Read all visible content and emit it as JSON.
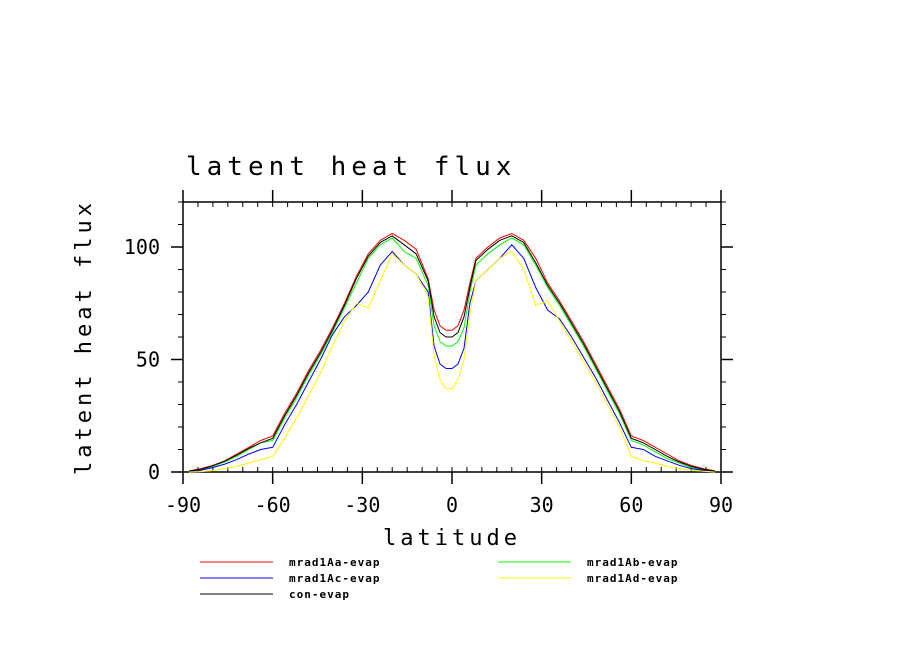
{
  "chart_data": {
    "type": "line",
    "title": "latent heat flux",
    "xlabel": "latitude",
    "ylabel": "latent heat flux",
    "xlim": [
      -90,
      90
    ],
    "ylim": [
      0,
      120
    ],
    "xticks": [
      -90,
      -60,
      -30,
      0,
      30,
      60,
      90
    ],
    "yticks": [
      0,
      50,
      100
    ],
    "grid": false,
    "legend_position": "bottom",
    "x": [
      -88,
      -84,
      -80,
      -76,
      -72,
      -68,
      -64,
      -60,
      -56,
      -52,
      -48,
      -44,
      -40,
      -36,
      -32,
      -28,
      -24,
      -20,
      -16,
      -12,
      -8,
      -6,
      -4,
      -2,
      0,
      2,
      4,
      6,
      8,
      12,
      16,
      20,
      24,
      28,
      32,
      36,
      40,
      44,
      48,
      52,
      56,
      60,
      64,
      68,
      72,
      76,
      80,
      84,
      88
    ],
    "series": [
      {
        "name": "mrad1Aa-evap",
        "color": "#ff0000",
        "values": [
          0.5,
          1.5,
          3,
          5,
          8,
          11,
          14,
          16,
          26,
          35,
          45,
          54,
          64,
          75,
          87,
          97,
          103,
          106,
          103,
          99,
          86,
          72,
          65,
          63,
          63,
          65,
          72,
          84,
          95,
          100,
          104,
          106,
          103,
          95,
          84,
          76,
          67,
          58,
          48,
          38,
          28,
          16,
          14,
          11,
          8,
          5,
          3,
          1.5,
          0.5
        ]
      },
      {
        "name": "mrad1Ab-evap",
        "color": "#00ff00",
        "values": [
          0.3,
          1,
          2.5,
          4.5,
          7,
          10,
          13,
          14,
          24,
          33,
          43,
          52,
          62,
          73,
          84,
          95,
          101,
          104,
          98,
          95,
          83,
          65,
          58,
          56,
          56,
          58,
          64,
          80,
          92,
          97,
          101,
          104,
          101,
          92,
          82,
          74,
          65,
          56,
          46,
          36,
          26,
          14,
          12,
          9,
          6,
          4,
          2,
          1,
          0.3
        ]
      },
      {
        "name": "mrad1Ac-evap",
        "color": "#0000ff",
        "values": [
          0.2,
          0.8,
          2,
          3.5,
          5.5,
          8,
          10,
          11,
          21,
          30,
          40,
          50,
          61,
          69,
          74,
          80,
          92,
          98,
          92,
          88,
          80,
          56,
          48,
          46,
          46,
          48,
          55,
          75,
          85,
          90,
          95,
          101,
          95,
          82,
          72,
          68,
          60,
          51,
          42,
          32,
          22,
          11,
          10,
          7,
          5,
          3,
          1.5,
          0.7,
          0.2
        ]
      },
      {
        "name": "mrad1Ad-evap",
        "color": "#ffff00",
        "values": [
          0,
          0.2,
          0.6,
          1.5,
          2.5,
          4,
          5.5,
          7,
          15,
          24,
          34,
          44,
          56,
          67,
          75,
          73,
          85,
          97,
          92,
          88,
          78,
          52,
          41,
          37,
          37,
          41,
          50,
          70,
          85,
          90,
          95,
          98,
          90,
          74,
          76,
          67,
          58,
          49,
          40,
          30,
          20,
          7,
          5,
          4,
          2.5,
          1.5,
          0.8,
          0.3,
          0
        ]
      },
      {
        "name": "con-evap",
        "color": "#000000",
        "values": [
          0.4,
          1.2,
          2.8,
          4.8,
          7.5,
          10.5,
          13,
          15,
          25,
          34,
          44,
          53,
          63,
          74,
          86,
          96,
          102,
          105,
          101,
          97,
          85,
          69,
          62,
          60,
          60,
          62,
          69,
          82,
          94,
          99,
          103,
          105,
          102,
          93,
          83,
          75,
          66,
          57,
          47,
          37,
          27,
          15,
          13,
          10,
          7,
          4.5,
          2.5,
          1.2,
          0.4
        ]
      }
    ]
  }
}
